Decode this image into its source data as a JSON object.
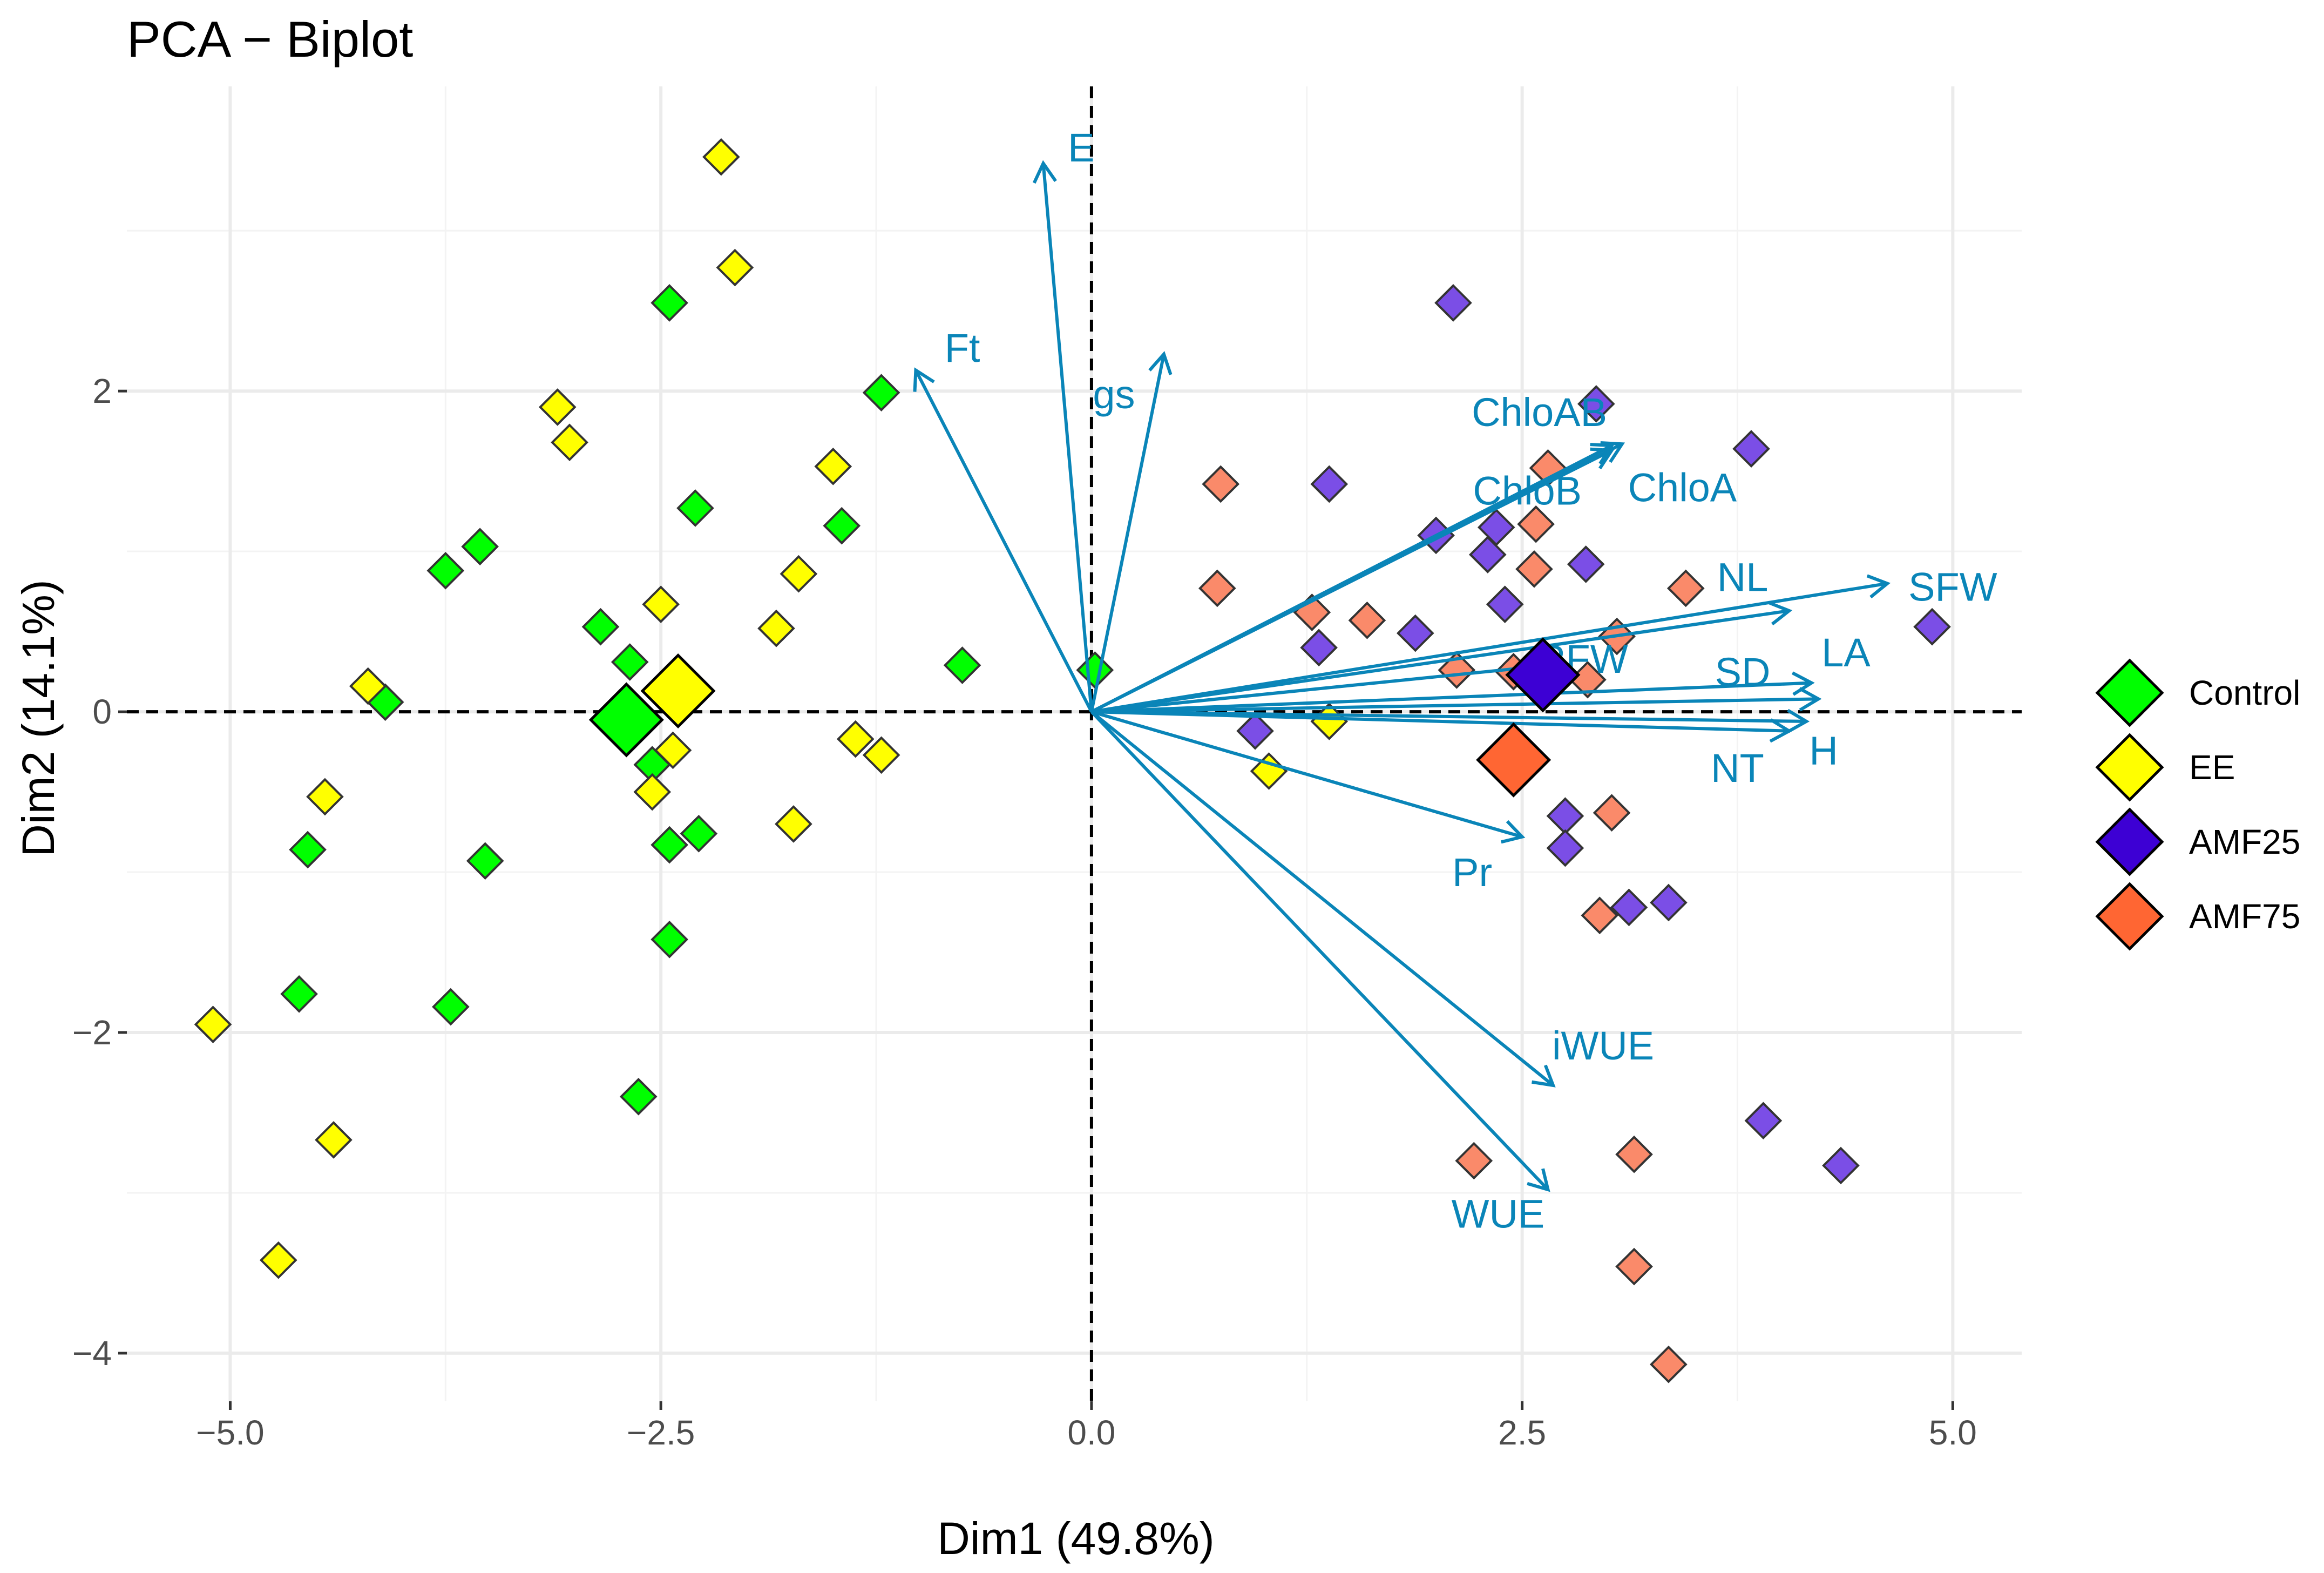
{
  "chart_data": {
    "type": "scatter",
    "title": "PCA − Biplot",
    "xlabel": "Dim1 (49.8%)",
    "ylabel": "Dim2 (14.1%)",
    "xlim": [
      -5.6,
      5.4
    ],
    "ylim": [
      -4.3,
      3.9
    ],
    "x_ticks": [
      -5.0,
      -2.5,
      0.0,
      2.5,
      5.0
    ],
    "x_tick_labels": [
      "−5.0",
      "−2.5",
      "0.0",
      "2.5",
      "5.0"
    ],
    "y_ticks": [
      -4,
      -2,
      0,
      2
    ],
    "y_tick_labels": [
      "−4",
      "−2",
      "0",
      "2"
    ],
    "grid": true,
    "arrow_color": "#0a85b8",
    "legend": {
      "position": "right",
      "entries": [
        {
          "name": "Control",
          "color": "#00ff00"
        },
        {
          "name": "EE",
          "color": "#ffff00"
        },
        {
          "name": "AMF25",
          "color": "#3d00d4"
        },
        {
          "name": "AMF75",
          "color": "#ff6633"
        }
      ]
    },
    "series": [
      {
        "name": "Control",
        "color": "#00ff00",
        "x": [
          -2.45,
          -1.22,
          -2.3,
          -3.55,
          -3.75,
          -2.85,
          -2.68,
          -4.1,
          -2.55,
          -2.45,
          -2.28,
          -4.55,
          -3.52,
          -4.6,
          -3.72,
          -2.45,
          -2.63,
          -1.45,
          -0.75,
          0.02
        ],
        "y": [
          2.55,
          1.99,
          1.27,
          1.03,
          0.88,
          0.53,
          0.31,
          0.06,
          -0.33,
          -0.83,
          -0.76,
          -0.86,
          -0.93,
          -1.76,
          -1.84,
          -1.42,
          -2.4,
          1.16,
          0.29,
          0.26
        ],
        "centroid": [
          -2.7,
          -0.05
        ]
      },
      {
        "name": "EE",
        "color": "#ffff00",
        "x": [
          -2.15,
          -2.07,
          -3.1,
          -3.03,
          -1.5,
          -1.7,
          -2.5,
          -1.83,
          -4.2,
          -2.43,
          -2.55,
          -1.37,
          -1.22,
          -4.45,
          -1.73,
          -5.1,
          -4.4,
          -4.72,
          1.03,
          1.38
        ],
        "y": [
          3.46,
          2.77,
          1.9,
          1.68,
          1.53,
          0.86,
          0.67,
          0.52,
          0.16,
          -0.24,
          -0.5,
          -0.17,
          -0.27,
          -0.53,
          -0.7,
          -1.95,
          -2.67,
          -3.42,
          -0.37,
          -0.06
        ],
        "centroid": [
          -2.4,
          0.13
        ]
      },
      {
        "name": "AMF25",
        "color": "#7b4ee6",
        "x": [
          2.1,
          2.93,
          3.83,
          1.38,
          2.35,
          2.3,
          2.0,
          2.87,
          2.4,
          1.88,
          1.32,
          0.95,
          2.75,
          2.75,
          3.12,
          3.35,
          3.9,
          4.35,
          4.88
        ],
        "y": [
          2.55,
          1.92,
          1.64,
          1.42,
          1.15,
          0.98,
          1.1,
          0.92,
          0.67,
          0.49,
          0.4,
          -0.12,
          -0.65,
          -0.85,
          -1.22,
          -1.19,
          -2.55,
          -2.83,
          0.53
        ],
        "centroid": [
          2.62,
          0.23
        ]
      },
      {
        "name": "AMF75",
        "color": "#fa8a6a",
        "x": [
          0.75,
          2.65,
          2.58,
          2.57,
          0.73,
          3.45,
          1.28,
          1.6,
          3.05,
          2.12,
          2.45,
          2.88,
          3.02,
          2.95,
          2.22,
          3.15,
          3.15,
          3.35
        ],
        "y": [
          1.42,
          1.52,
          1.17,
          0.89,
          0.77,
          0.77,
          0.62,
          0.57,
          0.47,
          0.26,
          0.25,
          0.2,
          -0.63,
          -1.27,
          -2.8,
          -2.76,
          -3.46,
          -4.07
        ],
        "centroid": [
          2.45,
          -0.3
        ]
      }
    ],
    "variables": [
      {
        "name": "E",
        "x": -0.28,
        "y": 3.42,
        "label_x": -0.06,
        "label_y": 3.52
      },
      {
        "name": "Ft",
        "x": -1.02,
        "y": 2.13,
        "label_x": -0.75,
        "label_y": 2.27
      },
      {
        "name": "gs",
        "x": 0.42,
        "y": 2.23,
        "label_x": 0.13,
        "label_y": 1.98
      },
      {
        "name": "ChloAB",
        "x": 3.02,
        "y": 1.66,
        "label_x": 2.6,
        "label_y": 1.87
      },
      {
        "name": "ChloA",
        "x": 3.08,
        "y": 1.67,
        "label_x": 3.43,
        "label_y": 1.4
      },
      {
        "name": "ChloB",
        "x": 3.02,
        "y": 1.63,
        "label_x": 2.53,
        "label_y": 1.38
      },
      {
        "name": "NL",
        "x": 4.05,
        "y": 0.63,
        "label_x": 3.78,
        "label_y": 0.84
      },
      {
        "name": "SFW",
        "x": 4.62,
        "y": 0.8,
        "label_x": 5.0,
        "label_y": 0.78
      },
      {
        "name": "RFW",
        "x": 2.75,
        "y": 0.3,
        "label_x": 2.85,
        "label_y": 0.33
      },
      {
        "name": "SD",
        "x": 4.18,
        "y": 0.18,
        "label_x": 3.78,
        "label_y": 0.25
      },
      {
        "name": "LA",
        "x": 4.22,
        "y": 0.08,
        "label_x": 4.38,
        "label_y": 0.37
      },
      {
        "name": "H",
        "x": 4.15,
        "y": -0.06,
        "label_x": 4.25,
        "label_y": -0.24
      },
      {
        "name": "NT",
        "x": 4.05,
        "y": -0.12,
        "label_x": 3.75,
        "label_y": -0.35
      },
      {
        "name": "Pr",
        "x": 2.5,
        "y": -0.78,
        "label_x": 2.21,
        "label_y": -1.0
      },
      {
        "name": "iWUE",
        "x": 2.68,
        "y": -2.33,
        "label_x": 2.97,
        "label_y": -2.08
      },
      {
        "name": "WUE",
        "x": 2.65,
        "y": -2.98,
        "label_x": 2.36,
        "label_y": -3.13
      }
    ]
  }
}
